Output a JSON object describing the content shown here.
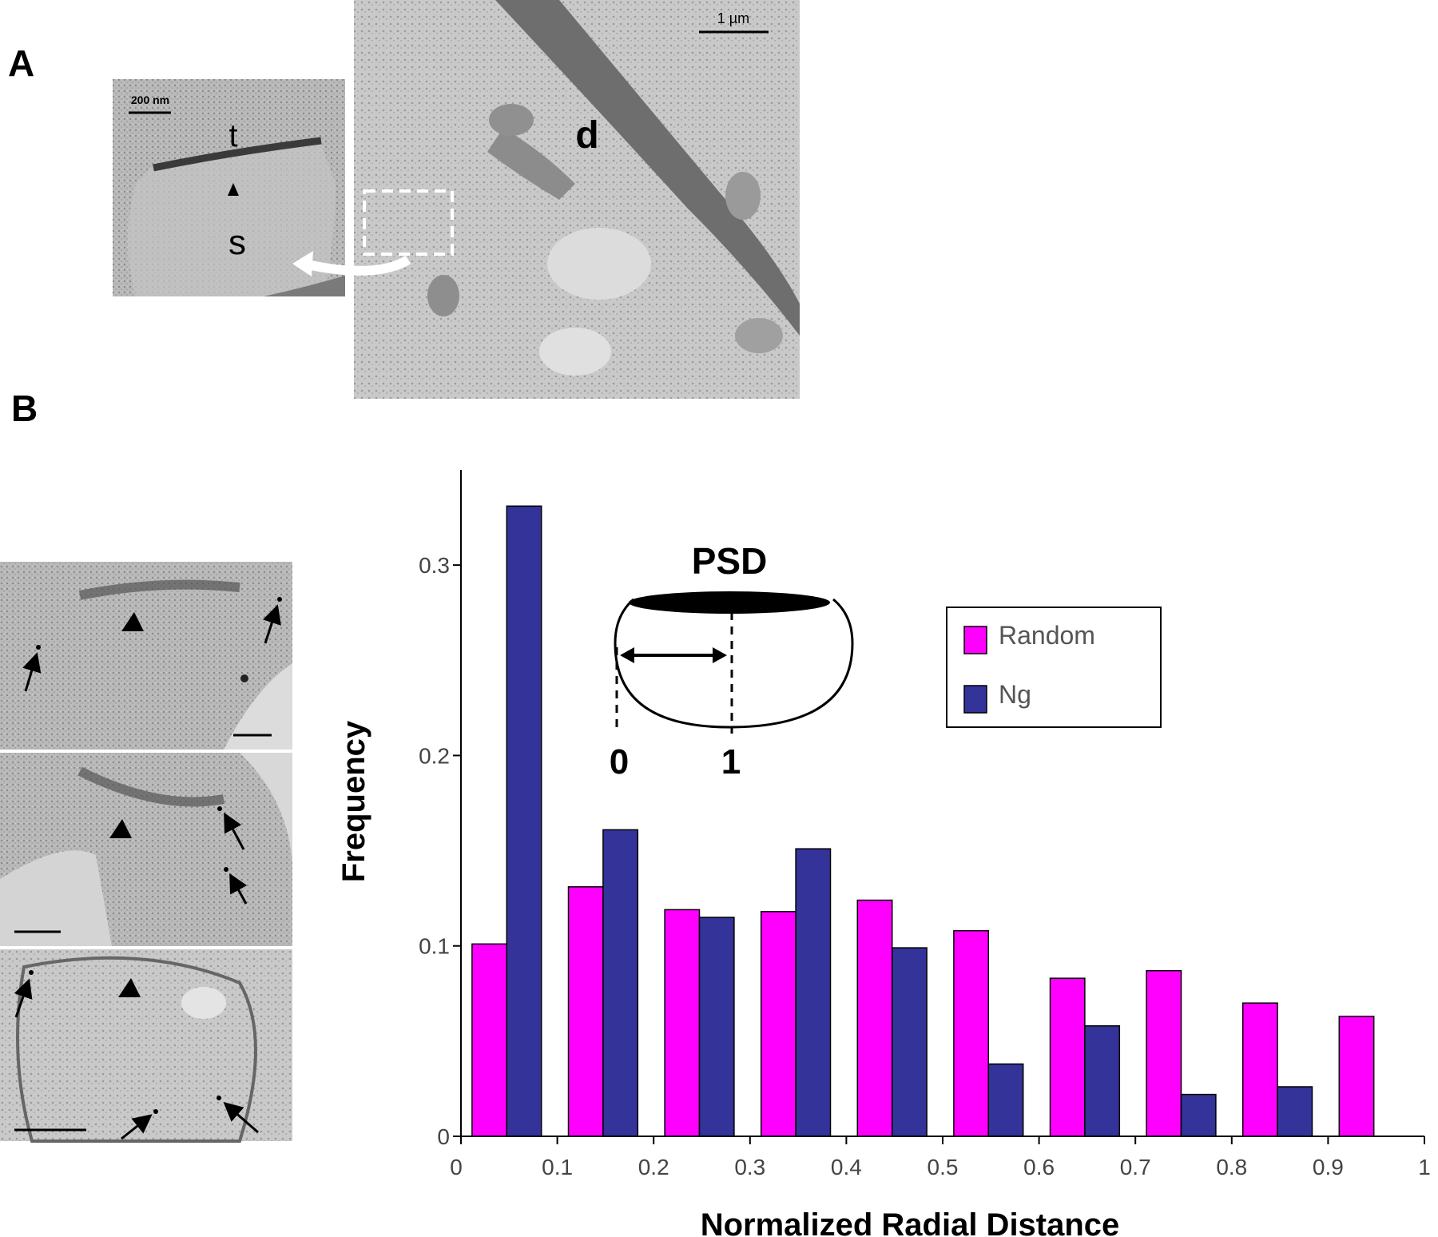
{
  "panels": {
    "a_label": "A",
    "b_label": "B"
  },
  "micrographs": {
    "inset_scale": "200 nm",
    "main_scale": "1 µm",
    "label_t": "t",
    "label_s": "s",
    "label_d": "d"
  },
  "colors": {
    "random": "#ff00ff",
    "ng": "#333399",
    "em_light": "#c8c8c8",
    "em_dark": "#6e6e6e"
  },
  "schematic": {
    "title": "PSD",
    "zero": "0",
    "one": "1"
  },
  "chart_data": {
    "type": "bar",
    "title": "",
    "xlabel": "Normalized Radial Distance",
    "ylabel": "Frequency",
    "xlim": [
      0,
      1
    ],
    "ylim": [
      0,
      0.35
    ],
    "x_ticks": [
      "0",
      "0.1",
      "0.2",
      "0.3",
      "0.4",
      "0.5",
      "0.6",
      "0.7",
      "0.8",
      "0.9",
      "1"
    ],
    "y_ticks": [
      "0",
      "0.1",
      "0.2",
      "0.3"
    ],
    "y_tick_values": [
      0,
      0.1,
      0.2,
      0.3
    ],
    "categories": [
      "0-0.1",
      "0.1-0.2",
      "0.2-0.3",
      "0.3-0.4",
      "0.4-0.5",
      "0.5-0.6",
      "0.6-0.7",
      "0.7-0.8",
      "0.8-0.9",
      "0.9-1"
    ],
    "series": [
      {
        "name": "Random",
        "values": [
          0.101,
          0.131,
          0.119,
          0.118,
          0.124,
          0.108,
          0.083,
          0.087,
          0.07,
          0.063
        ]
      },
      {
        "name": "Ng",
        "values": [
          0.331,
          0.161,
          0.115,
          0.151,
          0.099,
          0.038,
          0.058,
          0.022,
          0.026,
          null
        ]
      }
    ],
    "legend_position": "top-right",
    "grid": false
  }
}
